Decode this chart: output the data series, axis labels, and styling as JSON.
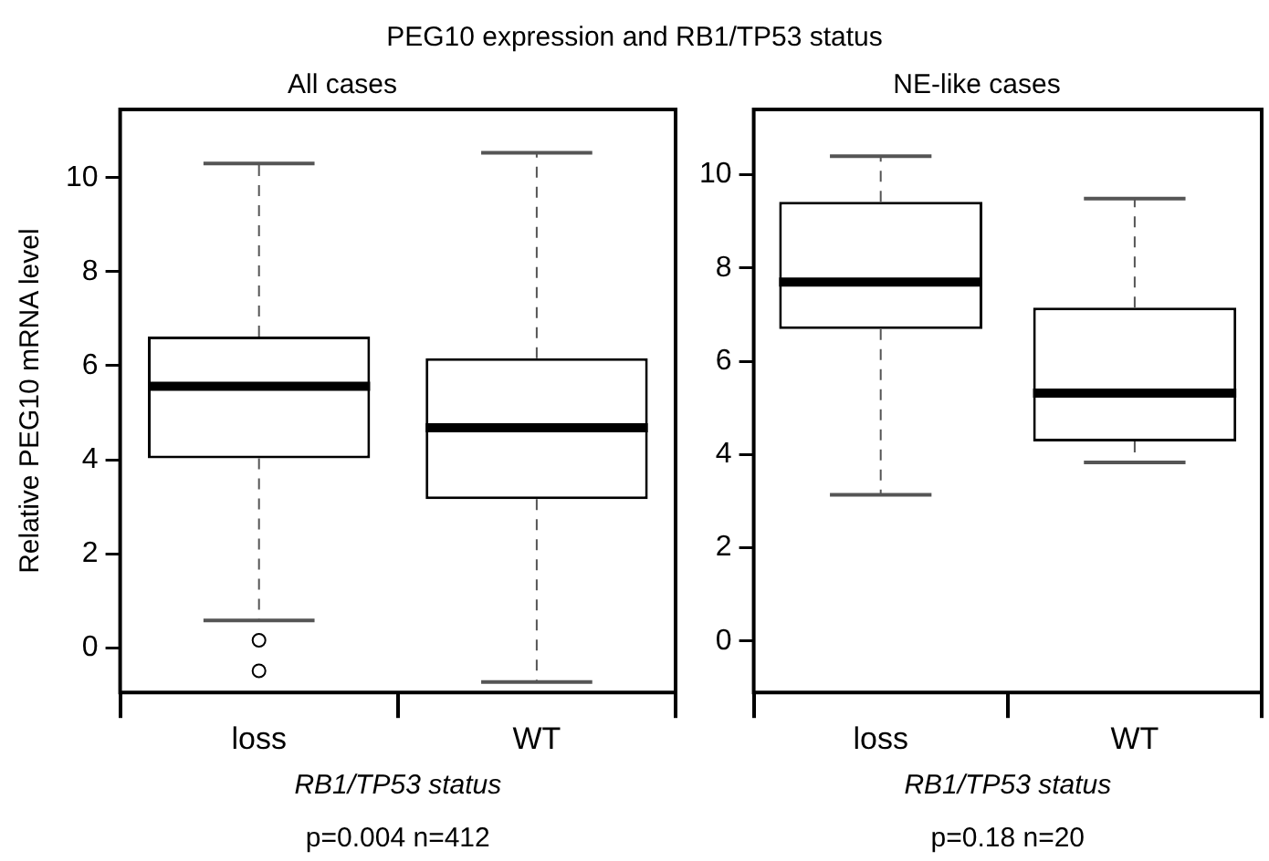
{
  "chart_data": [
    {
      "type": "box",
      "title": "PEG10 expression and RB1/TP53 status",
      "subtitle": "All cases",
      "ylabel": "Relative PEG10 mRNA level",
      "xlabel": "RB1/TP53 status",
      "annotations": [
        "p=0.004 n=412"
      ],
      "categories": [
        "loss",
        "WT"
      ],
      "ylim": [
        -0.95,
        11.45
      ],
      "yticks": [
        0,
        2,
        4,
        6,
        8,
        10
      ],
      "grid": false,
      "legend": false,
      "color": "#000000",
      "boxes": [
        {
          "low": 0.58,
          "q1": 4.03,
          "median": 5.56,
          "q3": 6.62,
          "high": 10.3,
          "outliers": [
            0.16,
            -0.49
          ]
        },
        {
          "low": -0.73,
          "q1": 3.16,
          "median": 4.68,
          "q3": 6.16,
          "high": 10.53
        }
      ]
    },
    {
      "type": "box",
      "subtitle": "NE-like cases",
      "xlabel": "RB1/TP53 status",
      "annotations": [
        "p=0.18 n=20"
      ],
      "categories": [
        "loss",
        "WT"
      ],
      "ylim": [
        -1.1,
        11.4
      ],
      "yticks": [
        0,
        2,
        4,
        6,
        8,
        10
      ],
      "grid": false,
      "legend": false,
      "color": "#000000",
      "boxes": [
        {
          "low": 3.14,
          "q1": 6.69,
          "median": 7.7,
          "q3": 9.42,
          "high": 10.4
        },
        {
          "low": 3.83,
          "q1": 4.28,
          "median": 5.32,
          "q3": 7.15,
          "high": 9.49
        }
      ]
    }
  ]
}
